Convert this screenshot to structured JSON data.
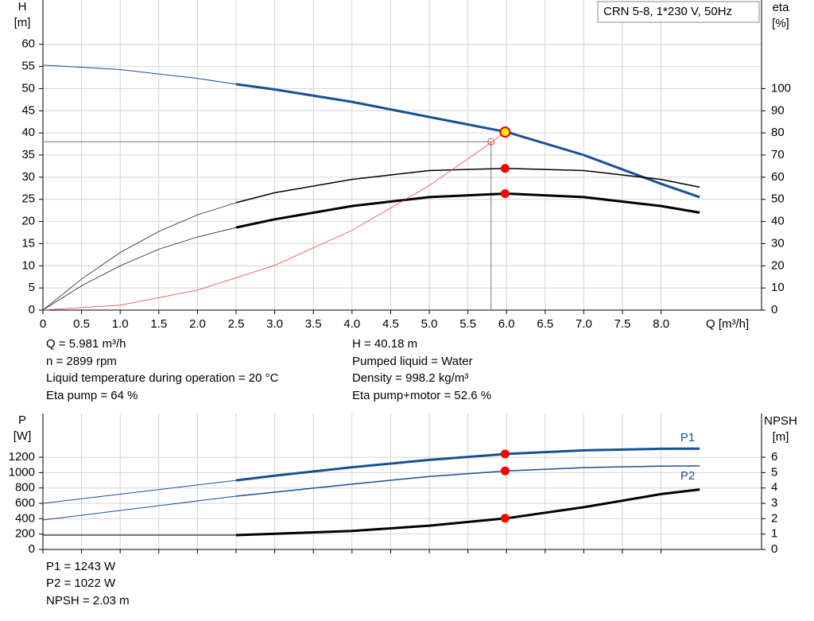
{
  "chart_data": [
    {
      "type": "line",
      "title": "CRN 5-8, 1*230 V, 50Hz",
      "ylabel": "H",
      "yunit": "[m]",
      "y2label": "eta",
      "y2unit": "[%]",
      "xlabel": "Q [m³/h]",
      "xlim": [
        0,
        9.3
      ],
      "xticks": [
        0,
        0.5,
        {
          "value": 1,
          "label": "1.0"
        },
        1.5,
        {
          "value": 2,
          "label": "2.0"
        },
        2.5,
        {
          "value": 3,
          "label": "3.0"
        },
        3.5,
        {
          "value": 4,
          "label": "4.0"
        },
        4.5,
        {
          "value": 5,
          "label": "5.0"
        },
        5.5,
        {
          "value": 6,
          "label": "6.0"
        },
        6.5,
        {
          "value": 7,
          "label": "7.0"
        },
        7.5,
        {
          "value": 8,
          "label": "8.0"
        }
      ],
      "ylim": [
        0,
        70
      ],
      "yticks": [
        0,
        5,
        10,
        15,
        20,
        25,
        30,
        35,
        40,
        45,
        50,
        55,
        60
      ],
      "y2lim": [
        0,
        140
      ],
      "y2ticks": [
        0,
        10,
        20,
        30,
        40,
        50,
        60,
        70,
        80,
        90,
        100
      ],
      "grid": true,
      "series": [
        {
          "color": "#175096",
          "width": 1,
          "x": [
            0,
            1,
            2,
            2.5
          ],
          "values": [
            55.3,
            54.3,
            52.3,
            51
          ]
        },
        {
          "color": "#175096",
          "width": 3,
          "x": [
            2.5,
            3,
            4,
            5,
            6,
            7,
            8,
            8.5
          ],
          "values": [
            51,
            49.8,
            47,
            43.6,
            40.2,
            35,
            28.5,
            25.5
          ]
        },
        {
          "color": "#000000",
          "width": 0.7,
          "axis": "y2",
          "x": [
            0,
            0.5,
            1,
            1.5,
            2,
            2.5
          ],
          "values": [
            0,
            14,
            26,
            35.5,
            43,
            48.5
          ]
        },
        {
          "color": "#000000",
          "width": 1.5,
          "axis": "y2",
          "x": [
            2.5,
            3,
            4,
            5,
            6,
            7,
            8,
            8.5
          ],
          "values": [
            48.5,
            53,
            59,
            63,
            64,
            63,
            59,
            55.5
          ]
        },
        {
          "color": "#000000",
          "width": 0.7,
          "axis": "y2",
          "x": [
            0,
            0.5,
            1,
            1.5,
            2,
            2.5
          ],
          "values": [
            0,
            11,
            20,
            27.5,
            33,
            37.3
          ]
        },
        {
          "color": "#000000",
          "width": 3,
          "axis": "y2",
          "x": [
            2.5,
            3,
            4,
            5,
            6,
            7,
            8,
            8.5
          ],
          "values": [
            37.3,
            41,
            47,
            51,
            52.6,
            51,
            47,
            44
          ]
        },
        {
          "color": "#f04040",
          "width": 0.8,
          "x": [
            0,
            1,
            2,
            3,
            4,
            5,
            5.8,
            5.981
          ],
          "values": [
            0,
            1.12,
            4.5,
            10.1,
            18,
            28.1,
            37.8,
            40.18
          ]
        }
      ],
      "guide": {
        "x": 5.8,
        "y": 38
      },
      "points": [
        {
          "x": 5.981,
          "y": 40.18,
          "color": "#ffee00"
        },
        {
          "x": 5.981,
          "y": 64,
          "color": "#ff0000",
          "axis": "y2"
        },
        {
          "x": 5.981,
          "y": 52.6,
          "color": "#ff0000",
          "axis": "y2"
        }
      ],
      "info_left": [
        "Q = 5.981 m³/h",
        "n = 2899 rpm",
        "Liquid temperature during operation = 20 °C",
        "Eta pump = 64 %"
      ],
      "info_right": [
        "H = 40.18 m",
        "Pumped liquid = Water",
        "Density = 998.2 kg/m³",
        "Eta pump+motor = 52.6 %"
      ]
    },
    {
      "type": "line",
      "ylabel": "P",
      "yunit": "[W]",
      "y2label": "NPSH",
      "y2unit": "[m]",
      "xlim": [
        0,
        9.3
      ],
      "ylim": [
        0,
        1770
      ],
      "yticks": [
        0,
        200,
        400,
        600,
        800,
        {
          "value": 1000,
          "label": "1000"
        },
        1200
      ],
      "y2lim": [
        0,
        8.85
      ],
      "y2ticks": [
        0,
        1,
        2,
        3,
        4,
        5,
        6
      ],
      "grid": true,
      "series": [
        {
          "color": "#175096",
          "width": 1,
          "x": [
            0,
            2.5
          ],
          "values": [
            600,
            900
          ]
        },
        {
          "name": "P1",
          "color": "#175096",
          "width": 3,
          "x": [
            2.5,
            3,
            4,
            5,
            6,
            7,
            8,
            8.5
          ],
          "values": [
            900,
            960,
            1070,
            1165,
            1243,
            1290,
            1310,
            1313
          ]
        },
        {
          "color": "#175096",
          "width": 1,
          "x": [
            0,
            2.5
          ],
          "values": [
            383,
            693
          ]
        },
        {
          "name": "P2",
          "color": "#175096",
          "width": 1.5,
          "x": [
            2.5,
            4,
            5,
            6,
            7,
            8,
            8.5
          ],
          "values": [
            693,
            850,
            950,
            1022,
            1065,
            1085,
            1088
          ]
        },
        {
          "color": "#000000",
          "width": 1,
          "axis": "y2",
          "x": [
            0,
            2.5
          ],
          "values": [
            0.93,
            0.93
          ]
        },
        {
          "color": "#000000",
          "width": 3,
          "axis": "y2",
          "x": [
            2.5,
            4,
            5,
            6,
            7,
            8,
            8.5
          ],
          "values": [
            0.93,
            1.2,
            1.55,
            2.03,
            2.75,
            3.6,
            3.9
          ]
        }
      ],
      "points": [
        {
          "x": 5.981,
          "y": 1243,
          "color": "#ff0000"
        },
        {
          "x": 5.981,
          "y": 1022,
          "color": "#ff0000"
        },
        {
          "x": 5.981,
          "y": 2.03,
          "color": "#ff0000",
          "axis": "y2"
        }
      ],
      "info_left": [
        "P1 = 1243 W",
        "P2 = 1022 W",
        "NPSH = 2.03 m"
      ]
    }
  ]
}
